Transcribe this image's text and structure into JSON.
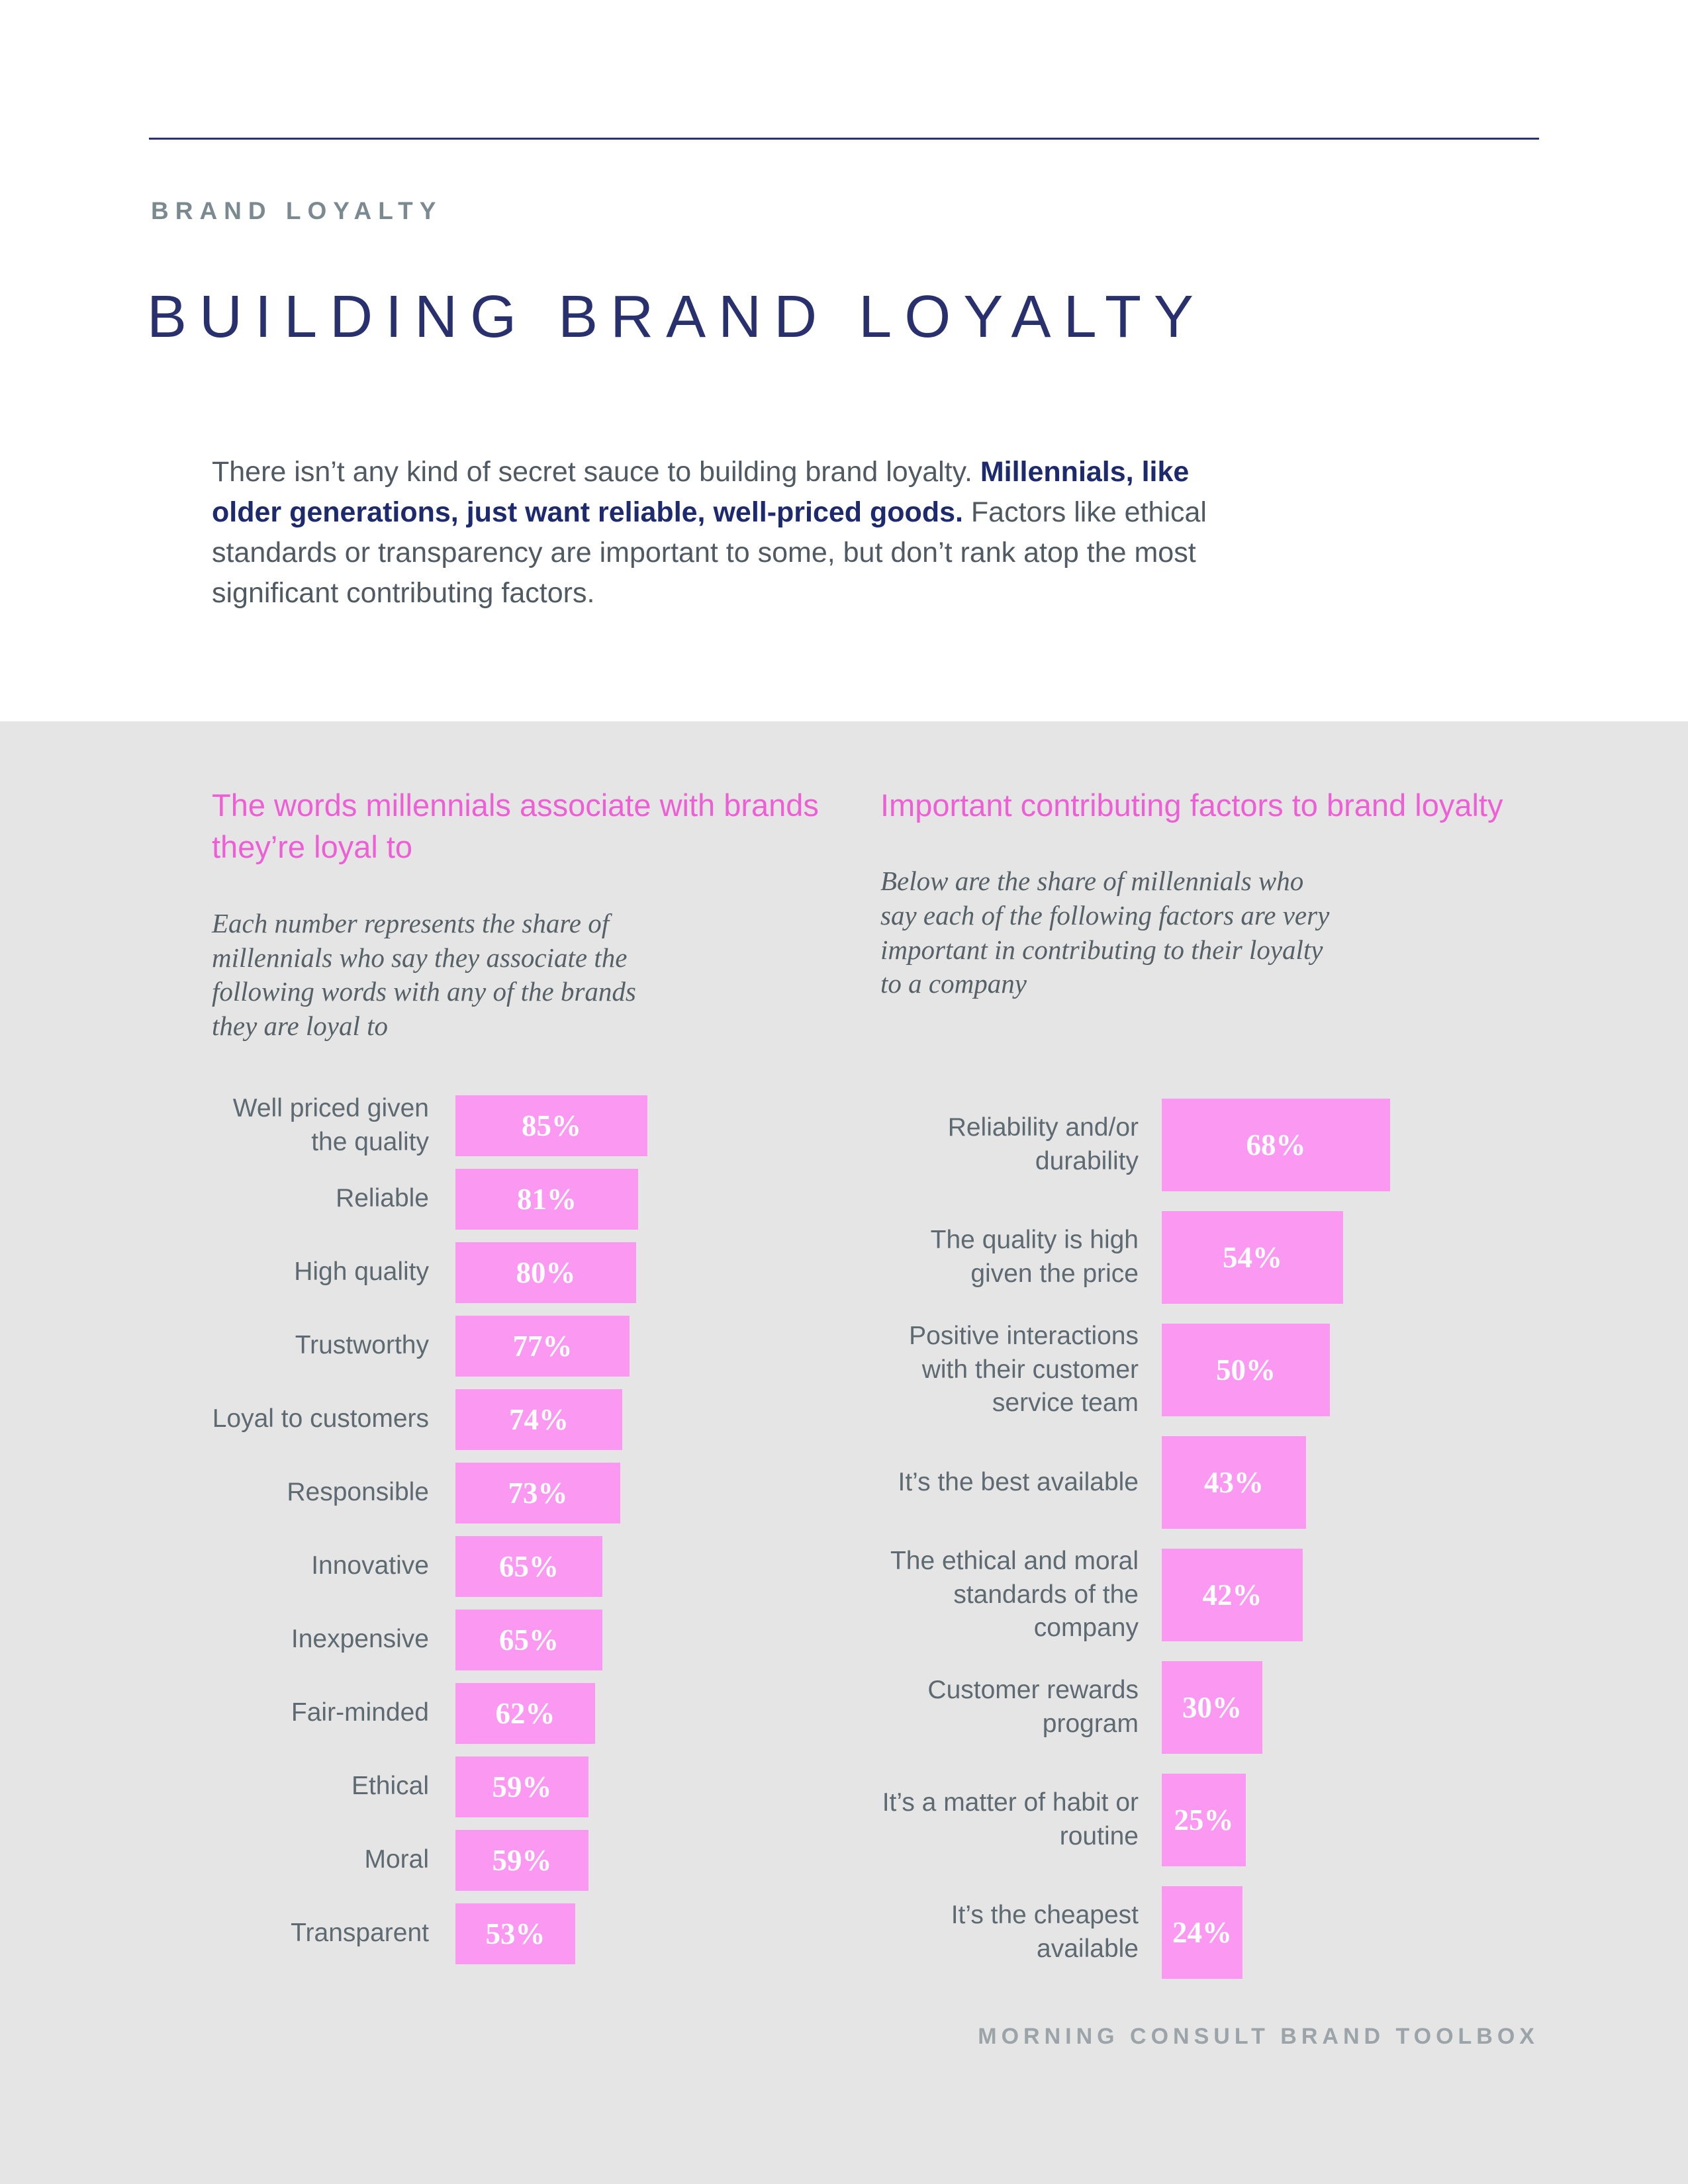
{
  "page": {
    "eyebrow": "BRAND LOYALTY",
    "title": "BUILDING BRAND LOYALTY",
    "footer": "MORNING CONSULT BRAND TOOLBOX"
  },
  "intro": {
    "part1": "There isn’t any kind of secret sauce to building brand loyalty. ",
    "bold": "Millennials, like older generations, just want reliable, well-priced goods.",
    "part2": " Factors like ethical standards or transparency are important to some, but don’t rank atop the most significant contributing factors."
  },
  "colors": {
    "navy": "#29306e",
    "pink_title": "#ee5fd6",
    "bar_pink": "#fb98f1",
    "background_gray": "#e5e5e5",
    "label_gray": "#5e6a71",
    "eyebrow_gray": "#7b8a90"
  },
  "chart_data": [
    {
      "type": "bar",
      "orientation": "horizontal",
      "title": "The words millennials associate with brands they’re loyal to",
      "subtitle": "Each number represents the share of millennials who say they associate the following words with any of the brands they are loyal to",
      "categories": [
        "Well priced given the quality",
        "Reliable",
        "High quality",
        "Trustworthy",
        "Loyal to customers",
        "Responsible",
        "Innovative",
        "Inexpensive",
        "Fair-minded",
        "Ethical",
        "Moral",
        "Transparent"
      ],
      "values": [
        85,
        81,
        80,
        77,
        74,
        73,
        65,
        65,
        62,
        59,
        59,
        53
      ],
      "value_format": "percent",
      "xlim": [
        0,
        100
      ],
      "grid": false,
      "legend": false
    },
    {
      "type": "bar",
      "orientation": "horizontal",
      "title": "Important contributing factors to brand loyalty",
      "subtitle": "Below are the share of millennials who say each of the following factors are very important in contributing to their loyalty to a company",
      "categories": [
        "Reliability and/or durability",
        "The quality is high given the price",
        "Positive interactions with their customer service team",
        "It’s the best available",
        "The ethical and moral standards of the company",
        "Customer rewards program",
        "It’s a matter of habit or routine",
        "It’s the cheapest available"
      ],
      "values": [
        68,
        54,
        50,
        43,
        42,
        30,
        25,
        24
      ],
      "value_format": "percent",
      "xlim": [
        0,
        100
      ],
      "grid": false,
      "legend": false
    }
  ]
}
